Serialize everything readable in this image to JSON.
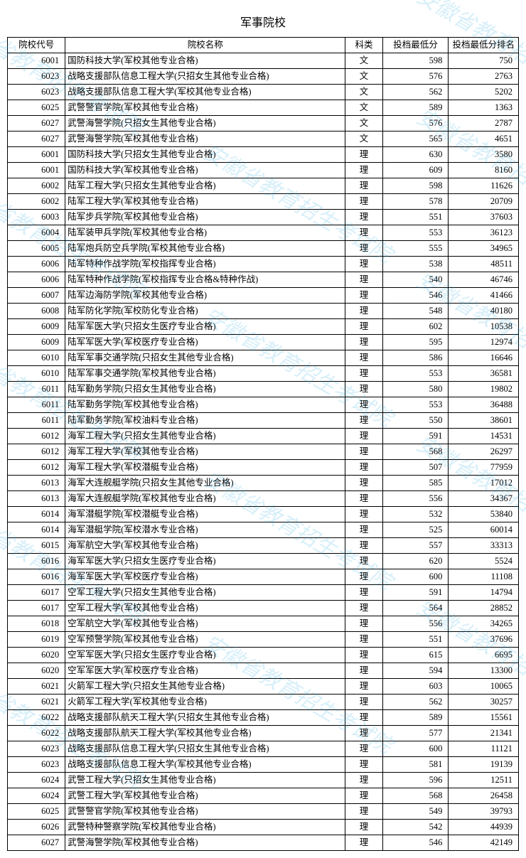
{
  "title": "军事院校",
  "columns": [
    "院校代号",
    "院校名称",
    "科类",
    "投档最低分",
    "投档最低分排名"
  ],
  "watermark_text": "安徽省教育招生考试院",
  "watermark_color": "#2aa8e0",
  "rows": [
    [
      "6001",
      "国防科技大学(军校其他专业合格)",
      "文",
      "598",
      "750"
    ],
    [
      "6023",
      "战略支援部队信息工程大学(只招女生其他专业合格)",
      "文",
      "576",
      "2763"
    ],
    [
      "6023",
      "战略支援部队信息工程大学(军校其他专业合格)",
      "文",
      "562",
      "5202"
    ],
    [
      "6025",
      "武警警官学院(军校其他专业合格)",
      "文",
      "589",
      "1363"
    ],
    [
      "6027",
      "武警海警学院(只招女生其他专业合格)",
      "文",
      "576",
      "2787"
    ],
    [
      "6027",
      "武警海警学院(军校其他专业合格)",
      "文",
      "565",
      "4651"
    ],
    [
      "6001",
      "国防科技大学(只招女生其他专业合格)",
      "理",
      "630",
      "3580"
    ],
    [
      "6001",
      "国防科技大学(军校其他专业合格)",
      "理",
      "609",
      "8160"
    ],
    [
      "6002",
      "陆军工程大学(只招女生其他专业合格)",
      "理",
      "598",
      "11626"
    ],
    [
      "6002",
      "陆军工程大学(军校其他专业合格)",
      "理",
      "578",
      "20709"
    ],
    [
      "6003",
      "陆军步兵学院(军校其他专业合格)",
      "理",
      "551",
      "37603"
    ],
    [
      "6004",
      "陆军装甲兵学院(军校其他专业合格)",
      "理",
      "553",
      "36123"
    ],
    [
      "6005",
      "陆军炮兵防空兵学院(军校其他专业合格)",
      "理",
      "555",
      "34965"
    ],
    [
      "6006",
      "陆军特种作战学院(军校指挥专业合格)",
      "理",
      "538",
      "48511"
    ],
    [
      "6006",
      "陆军特种作战学院(军校指挥专业合格&特种作战)",
      "理",
      "540",
      "46746"
    ],
    [
      "6007",
      "陆军边海防学院(军校其他专业合格)",
      "理",
      "546",
      "41466"
    ],
    [
      "6008",
      "陆军防化学院(军校防化专业合格)",
      "理",
      "548",
      "40180"
    ],
    [
      "6009",
      "陆军军医大学(只招女生医疗专业合格)",
      "理",
      "602",
      "10538"
    ],
    [
      "6009",
      "陆军军医大学(军校医疗专业合格)",
      "理",
      "595",
      "12974"
    ],
    [
      "6010",
      "陆军军事交通学院(只招女生其他专业合格)",
      "理",
      "586",
      "16646"
    ],
    [
      "6010",
      "陆军军事交通学院(军校其他专业合格)",
      "理",
      "553",
      "36581"
    ],
    [
      "6011",
      "陆军勤务学院(只招女生其他专业合格)",
      "理",
      "580",
      "19802"
    ],
    [
      "6011",
      "陆军勤务学院(军校其他专业合格)",
      "理",
      "553",
      "36488"
    ],
    [
      "6011",
      "陆军勤务学院(军校油料专业合格)",
      "理",
      "550",
      "38601"
    ],
    [
      "6012",
      "海军工程大学(只招女生其他专业合格)",
      "理",
      "591",
      "14531"
    ],
    [
      "6012",
      "海军工程大学(军校其他专业合格)",
      "理",
      "568",
      "26297"
    ],
    [
      "6012",
      "海军工程大学(军校潜艇专业合格)",
      "理",
      "507",
      "77959"
    ],
    [
      "6013",
      "海军大连舰艇学院(只招女生其他专业合格)",
      "理",
      "585",
      "17012"
    ],
    [
      "6013",
      "海军大连舰艇学院(军校其他专业合格)",
      "理",
      "556",
      "34367"
    ],
    [
      "6014",
      "海军潜艇学院(军校潜艇专业合格)",
      "理",
      "532",
      "53840"
    ],
    [
      "6014",
      "海军潜艇学院(军校潜水专业合格)",
      "理",
      "525",
      "60014"
    ],
    [
      "6015",
      "海军航空大学(军校其他专业合格)",
      "理",
      "557",
      "33313"
    ],
    [
      "6016",
      "海军军医大学(只招女生医疗专业合格)",
      "理",
      "620",
      "5524"
    ],
    [
      "6016",
      "海军军医大学(军校医疗专业合格)",
      "理",
      "600",
      "11108"
    ],
    [
      "6017",
      "空军工程大学(只招女生其他专业合格)",
      "理",
      "591",
      "14794"
    ],
    [
      "6017",
      "空军工程大学(军校其他专业合格)",
      "理",
      "564",
      "28852"
    ],
    [
      "6018",
      "空军航空大学(军校其他专业合格)",
      "理",
      "556",
      "34265"
    ],
    [
      "6019",
      "空军预警学院(军校其他专业合格)",
      "理",
      "551",
      "37696"
    ],
    [
      "6020",
      "空军军医大学(只招女生医疗专业合格)",
      "理",
      "615",
      "6695"
    ],
    [
      "6020",
      "空军军医大学(军校医疗专业合格)",
      "理",
      "594",
      "13300"
    ],
    [
      "6021",
      "火箭军工程大学(只招女生其他专业合格)",
      "理",
      "603",
      "10065"
    ],
    [
      "6021",
      "火箭军工程大学(军校其他专业合格)",
      "理",
      "562",
      "30257"
    ],
    [
      "6022",
      "战略支援部队航天工程大学(只招女生其他专业合格)",
      "理",
      "589",
      "15561"
    ],
    [
      "6022",
      "战略支援部队航天工程大学(军校其他专业合格)",
      "理",
      "577",
      "21341"
    ],
    [
      "6023",
      "战略支援部队信息工程大学(只招女生其他专业合格)",
      "理",
      "600",
      "11121"
    ],
    [
      "6023",
      "战略支援部队信息工程大学(军校其他专业合格)",
      "理",
      "581",
      "19139"
    ],
    [
      "6024",
      "武警工程大学(只招女生其他专业合格)",
      "理",
      "596",
      "12511"
    ],
    [
      "6024",
      "武警工程大学(军校其他专业合格)",
      "理",
      "568",
      "26458"
    ],
    [
      "6025",
      "武警警官学院(军校其他专业合格)",
      "理",
      "549",
      "39793"
    ],
    [
      "6026",
      "武警特种警察学院(军校其他专业合格)",
      "理",
      "542",
      "44939"
    ],
    [
      "6027",
      "武警海警学院(军校其他专业合格)",
      "理",
      "546",
      "42149"
    ]
  ]
}
